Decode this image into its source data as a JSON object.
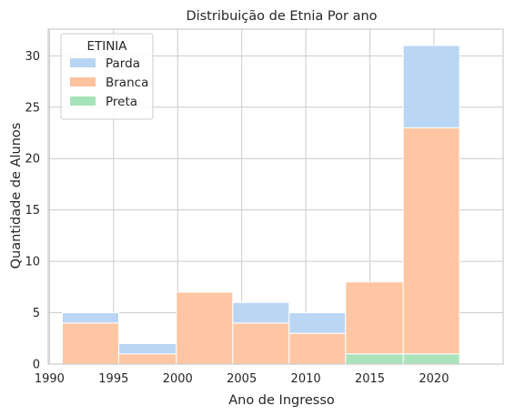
{
  "chart_data": {
    "type": "bar",
    "stacked": true,
    "title": "Distribuição de Etnia Por ano",
    "xlabel": "Ano de Ingresso",
    "ylabel": "Quantidade de Alunos",
    "xlim": [
      1989.9,
      2025.4
    ],
    "ylim": [
      0,
      32.6
    ],
    "xticks": [
      1990,
      1995,
      2000,
      2005,
      2010,
      2015,
      2020
    ],
    "yticks": [
      0,
      5,
      10,
      15,
      20,
      25,
      30
    ],
    "grid": true,
    "legend": {
      "title": "ETINIA",
      "placement": "top-left"
    },
    "bins": [
      [
        1991,
        1995.4
      ],
      [
        1995.4,
        1999.9
      ],
      [
        1999.9,
        2004.3
      ],
      [
        2004.3,
        2008.7
      ],
      [
        2008.7,
        2013.1
      ],
      [
        2013.1,
        2017.6
      ],
      [
        2017.6,
        2022
      ]
    ],
    "series": [
      {
        "name": "Preta",
        "color": "#a6e3b8",
        "values": [
          0,
          0,
          0,
          0,
          0,
          1,
          1
        ]
      },
      {
        "name": "Branca",
        "color": "#fec39e",
        "values": [
          4,
          1,
          7,
          4,
          3,
          7,
          22
        ]
      },
      {
        "name": "Parda",
        "color": "#b7d4f3",
        "values": [
          1,
          1,
          0,
          2,
          2,
          0,
          8
        ]
      }
    ],
    "legend_order": [
      "Parda",
      "Branca",
      "Preta"
    ]
  }
}
